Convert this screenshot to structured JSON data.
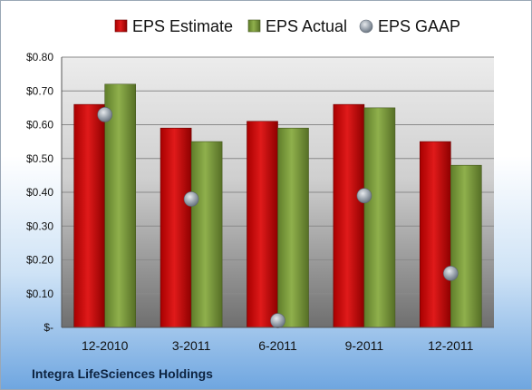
{
  "company_name": "Integra LifeSciences Holdings",
  "colors": {
    "estimate": "#c00000",
    "actual": "#7a9b3a",
    "gaap": "#9aa3ad",
    "plot_top": "#ececec",
    "plot_bottom": "#6f6f6f"
  },
  "chart_data": {
    "type": "bar",
    "categories": [
      "12-2010",
      "3-2011",
      "6-2011",
      "9-2011",
      "12-2011"
    ],
    "series": [
      {
        "name": "EPS Estimate",
        "kind": "bar",
        "values": [
          0.66,
          0.59,
          0.61,
          0.66,
          0.55
        ]
      },
      {
        "name": "EPS Actual",
        "kind": "bar",
        "values": [
          0.72,
          0.55,
          0.59,
          0.65,
          0.48
        ]
      },
      {
        "name": "EPS GAAP",
        "kind": "scatter",
        "values": [
          0.63,
          0.38,
          0.02,
          0.39,
          0.16
        ]
      }
    ],
    "y_ticks": [
      {
        "value": 0.0,
        "label": "$-"
      },
      {
        "value": 0.1,
        "label": "$0.10"
      },
      {
        "value": 0.2,
        "label": "$0.20"
      },
      {
        "value": 0.3,
        "label": "$0.30"
      },
      {
        "value": 0.4,
        "label": "$0.40"
      },
      {
        "value": 0.5,
        "label": "$0.50"
      },
      {
        "value": 0.6,
        "label": "$0.60"
      },
      {
        "value": 0.7,
        "label": "$0.70"
      },
      {
        "value": 0.8,
        "label": "$0.80"
      }
    ],
    "ylim": [
      0,
      0.8
    ],
    "grid": true,
    "legend_position": "top"
  }
}
